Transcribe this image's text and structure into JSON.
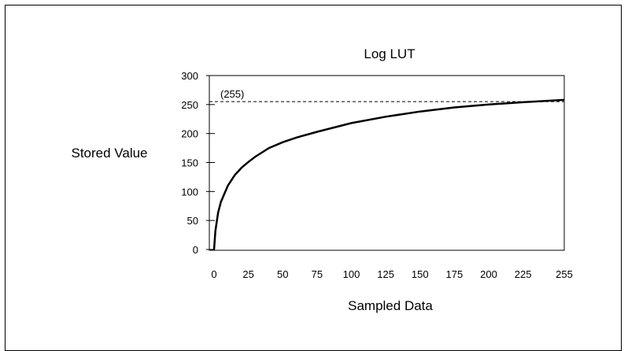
{
  "chart_data": {
    "type": "line",
    "title": "Log LUT",
    "xlabel": "Sampled Data",
    "ylabel": "Stored Value",
    "xlim": [
      0,
      255
    ],
    "ylim": [
      0,
      300
    ],
    "x_ticks": [
      0,
      25,
      50,
      75,
      100,
      125,
      150,
      175,
      200,
      225,
      255
    ],
    "y_ticks": [
      0,
      50,
      100,
      150,
      200,
      250,
      300
    ],
    "grid": false,
    "series": [
      {
        "x": [
          0,
          1,
          3,
          5,
          10,
          15,
          20,
          25,
          30,
          40,
          50,
          60,
          75,
          100,
          125,
          150,
          175,
          200,
          225,
          255
        ],
        "y": [
          0,
          32,
          64,
          82,
          110,
          128,
          141,
          151,
          160,
          175,
          185,
          193,
          203,
          218,
          229,
          238,
          245,
          250,
          254,
          258
        ]
      }
    ],
    "reference_line": {
      "y": 255,
      "label": "(255)",
      "style": "dashed"
    }
  },
  "colors": {
    "line": "#000000",
    "background": "#ffffff"
  }
}
